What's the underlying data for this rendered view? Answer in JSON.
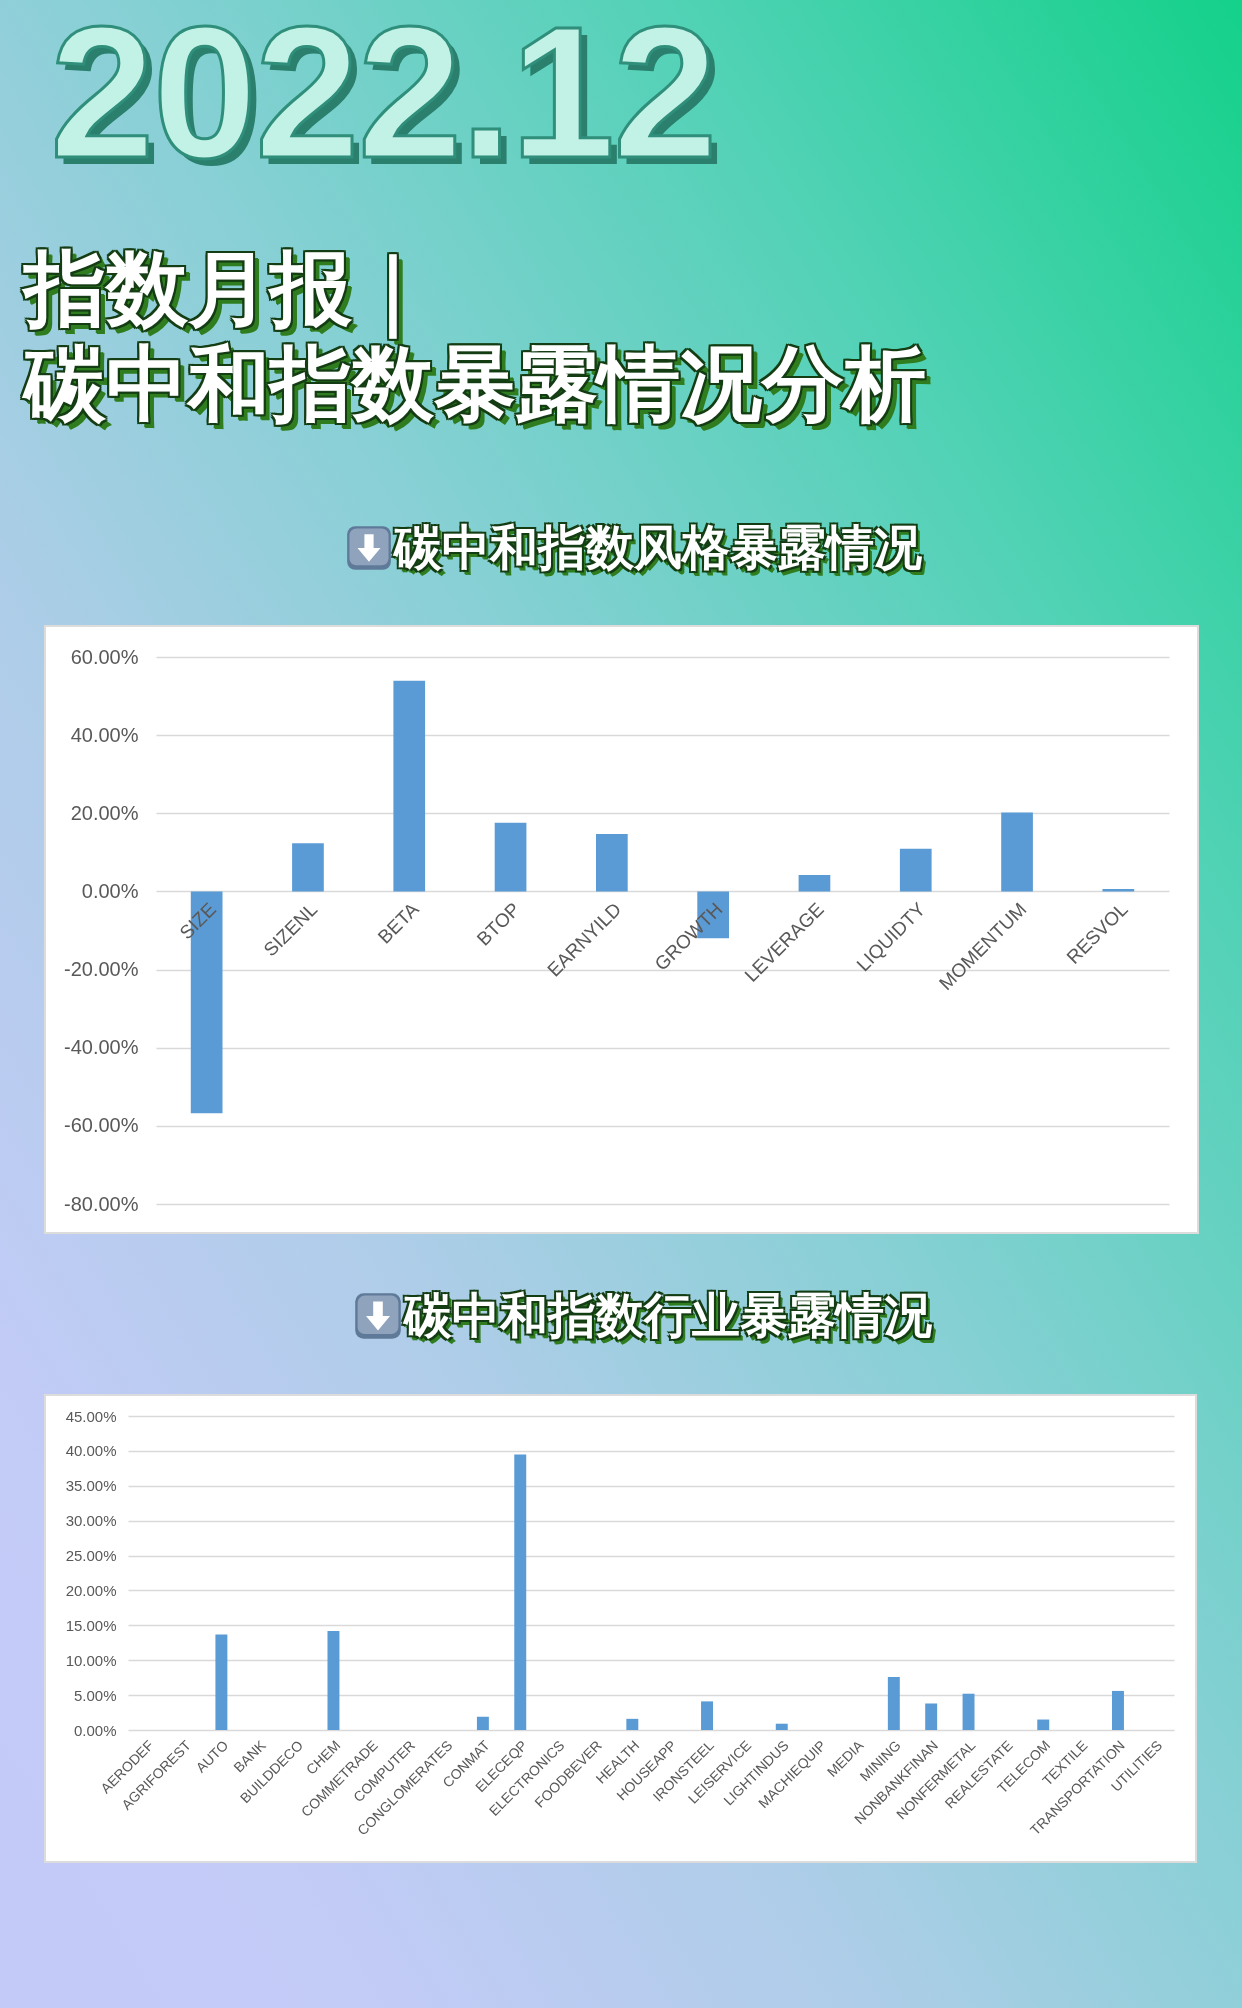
{
  "chart_data": [
    {
      "type": "bar",
      "title": "碳中和指数风格暴露情况",
      "annotations": [
        "2022.12",
        "指数月报｜",
        "碳中和指数暴露情况分析"
      ],
      "categories": [
        "SIZE",
        "SIZENL",
        "BETA",
        "BTOP",
        "EARNYILD",
        "GROWTH",
        "LEVERAGE",
        "LIQUIDTY",
        "MOMENTUM",
        "RESVOL"
      ],
      "values": [
        -56.8,
        12.3,
        53.9,
        17.6,
        14.7,
        -12.0,
        4.2,
        10.9,
        20.2,
        0.6
      ],
      "color": "#5b9bd5",
      "ylim": [
        -80,
        60
      ],
      "yticks": [
        {
          "value": -80,
          "label": "-80.00%"
        },
        {
          "value": -60,
          "label": "-60.00%"
        },
        {
          "value": -40,
          "label": "-40.00%"
        },
        {
          "value": -20,
          "label": "-20.00%"
        },
        {
          "value": 0,
          "label": "0.00%"
        },
        {
          "value": 20,
          "label": "20.00%"
        },
        {
          "value": 40,
          "label": "40.00%"
        },
        {
          "value": 60,
          "label": "60.00%"
        }
      ],
      "grid": "y"
    },
    {
      "type": "bar",
      "title": "碳中和指数行业暴露情况",
      "categories": [
        "AERODEF",
        "AGRIFOREST",
        "AUTO",
        "BANK",
        "BUILDDECO",
        "CHEM",
        "COMMETRADE",
        "COMPUTER",
        "CONGLOMERATES",
        "CONMAT",
        "ELECEQP",
        "ELECTRONICS",
        "FOODBEVER",
        "HEALTH",
        "HOUSEAPP",
        "IRONSTEEL",
        "LEISERVICE",
        "LIGHTINDUS",
        "MACHIEQUIP",
        "MEDIA",
        "MINING",
        "NONBANKFINAN",
        "NONFERMETAL",
        "REALESTATE",
        "TELECOM",
        "TEXTILE",
        "TRANSPORTATION",
        "UTILITIES"
      ],
      "values": [
        0,
        0,
        13.7,
        0,
        0,
        14.2,
        0,
        0,
        0,
        1.9,
        39.5,
        0,
        0,
        1.6,
        0,
        4.1,
        0,
        0.9,
        0,
        0,
        7.6,
        3.8,
        5.2,
        0,
        1.5,
        0,
        5.6,
        0
      ],
      "color": "#5b9bd5",
      "ylim": [
        0,
        45
      ],
      "yticks": [
        {
          "value": 0,
          "label": "0.00%"
        },
        {
          "value": 5,
          "label": "5.00%"
        },
        {
          "value": 10,
          "label": "10.00%"
        },
        {
          "value": 15,
          "label": "15.00%"
        },
        {
          "value": 20,
          "label": "20.00%"
        },
        {
          "value": 25,
          "label": "25.00%"
        },
        {
          "value": 30,
          "label": "30.00%"
        },
        {
          "value": 35,
          "label": "35.00%"
        },
        {
          "value": 40,
          "label": "40.00%"
        },
        {
          "value": 45,
          "label": "45.00%"
        }
      ],
      "grid": "y"
    }
  ]
}
